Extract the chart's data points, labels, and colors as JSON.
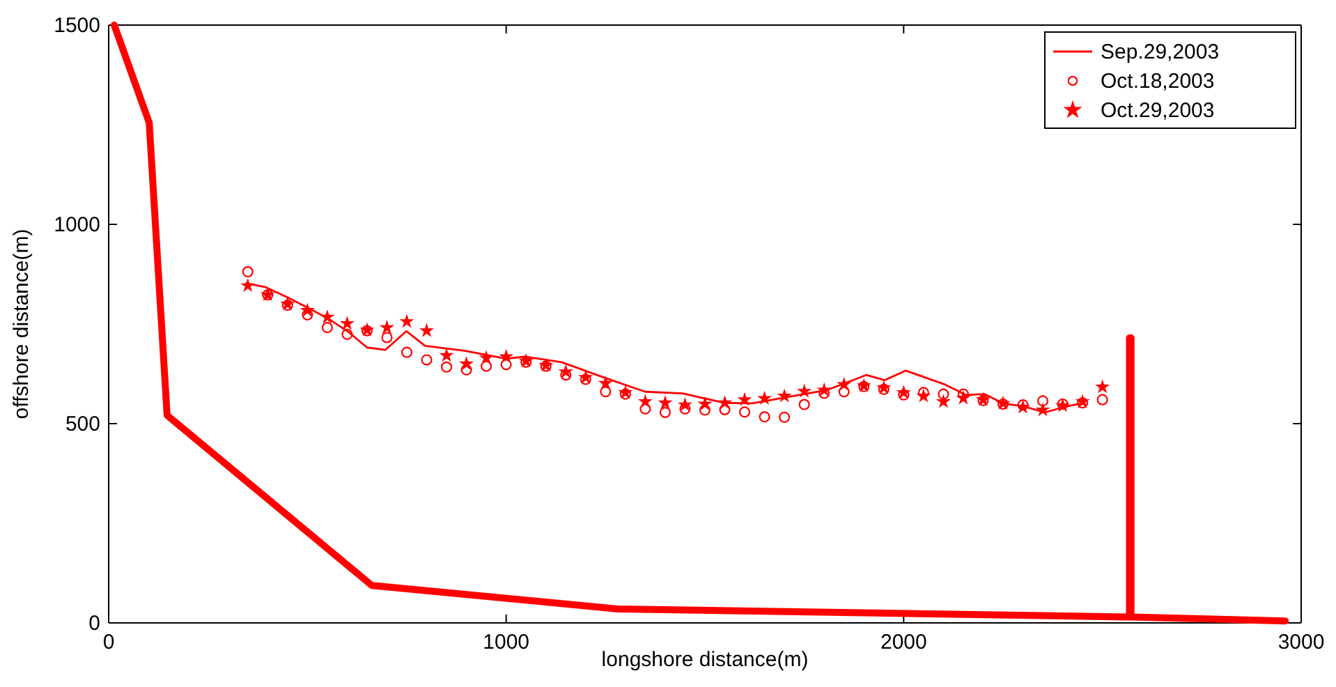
{
  "chart_data": {
    "type": "line",
    "xlabel": "longshore distance(m)",
    "ylabel": "offshore distance(m)",
    "xlim": [
      0,
      3000
    ],
    "ylim": [
      0,
      1500
    ],
    "xticks": [
      0,
      1000,
      2000,
      3000
    ],
    "yticks": [
      0,
      500,
      1000,
      1500
    ],
    "grid": false,
    "legend": "top right",
    "series": [
      {
        "color": "#ff0000",
        "line_style": "solid",
        "marker": "none",
        "x": [
          14,
          102,
          147,
          662,
          1280,
          2560,
          2568,
          2568,
          2572,
          2572,
          2960
        ],
        "values": [
          1500,
          1255,
          521,
          94,
          35,
          15,
          15,
          715,
          715,
          15,
          5
        ]
      },
      {
        "name": "Sep.29,2003",
        "color": "#ff0000",
        "line_style": "solid",
        "marker": "none",
        "x": [
          346,
          393,
          450,
          500,
          550,
          603,
          650,
          696,
          749,
          796,
          895,
          1000,
          1047,
          1140,
          1245,
          1350,
          1444,
          1549,
          1619,
          1806,
          1906,
          1952,
          2005,
          2104,
          2157,
          2204,
          2250,
          2303,
          2355,
          2408,
          2455
        ],
        "values": [
          852,
          843,
          817,
          791,
          765,
          730,
          691,
          685,
          732,
          695,
          683,
          663,
          668,
          654,
          616,
          580,
          576,
          552,
          551,
          584,
          622,
          609,
          633,
          598,
          572,
          574,
          551,
          543,
          528,
          543,
          552
        ]
      },
      {
        "name": "Oct.18,2003",
        "type": "scatter",
        "color": "#ff0000",
        "marker": "circle",
        "x": [
          350,
          400,
          450,
          500,
          550,
          600,
          650,
          700,
          750,
          800,
          850,
          900,
          950,
          1000,
          1050,
          1100,
          1150,
          1200,
          1250,
          1300,
          1350,
          1400,
          1450,
          1500,
          1550,
          1600,
          1650,
          1700,
          1750,
          1800,
          1850,
          1900,
          1950,
          2000,
          2050,
          2100,
          2150,
          2200,
          2250,
          2300,
          2350,
          2400,
          2450,
          2500
        ],
        "values": [
          881,
          823,
          797,
          773,
          741,
          724,
          733,
          716,
          679,
          660,
          642,
          635,
          644,
          648,
          654,
          644,
          622,
          611,
          580,
          574,
          537,
          528,
          537,
          534,
          535,
          529,
          517,
          516,
          548,
          576,
          580,
          593,
          586,
          572,
          578,
          574,
          574,
          558,
          549,
          547,
          557,
          549,
          552,
          560
        ]
      },
      {
        "name": "Oct.29,2003",
        "type": "scatter",
        "color": "#ff0000",
        "marker": "star",
        "x": [
          350,
          400,
          450,
          500,
          550,
          600,
          650,
          700,
          750,
          800,
          850,
          900,
          950,
          1000,
          1050,
          1100,
          1150,
          1200,
          1250,
          1300,
          1350,
          1400,
          1450,
          1500,
          1550,
          1600,
          1650,
          1700,
          1750,
          1800,
          1850,
          1900,
          1950,
          2000,
          2050,
          2100,
          2150,
          2200,
          2250,
          2300,
          2350,
          2400,
          2450,
          2500
        ],
        "values": [
          846,
          823,
          800,
          784,
          767,
          751,
          735,
          741,
          756,
          733,
          671,
          650,
          665,
          668,
          657,
          646,
          630,
          616,
          601,
          578,
          555,
          552,
          547,
          549,
          552,
          560,
          563,
          569,
          581,
          584,
          598,
          595,
          590,
          578,
          569,
          555,
          564,
          560,
          551,
          541,
          534,
          545,
          555,
          592
        ]
      }
    ]
  }
}
